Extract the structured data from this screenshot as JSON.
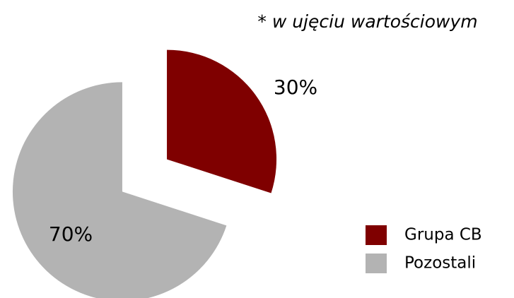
{
  "chart_data": {
    "type": "pie",
    "annotation": "* w ujęciu wartościowym",
    "categories": [
      "Grupa CB",
      "Pozostali"
    ],
    "values": [
      30,
      70
    ],
    "value_labels": [
      "30%",
      "70%"
    ],
    "colors": [
      "#7f0000",
      "#b3b3b3"
    ],
    "legend": "right"
  }
}
